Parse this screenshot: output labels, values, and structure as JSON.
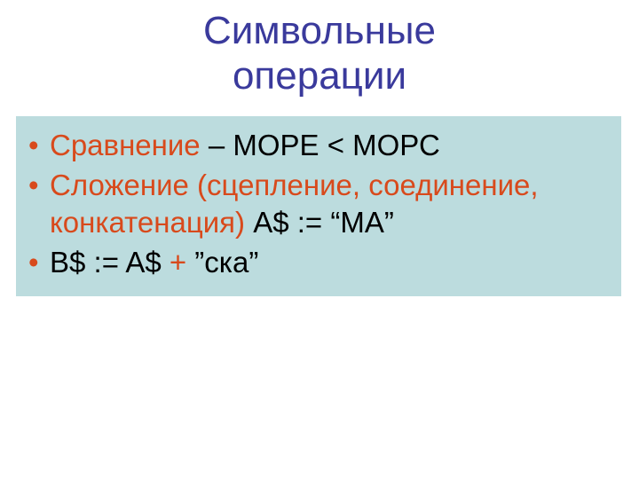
{
  "title": {
    "line1": "Символьные",
    "line2": "операции",
    "color": "#3a3a9c",
    "fontsize": 44
  },
  "content": {
    "background_color": "#bcdcde",
    "bullet_color": "#d84a1c",
    "text_color": "#000000",
    "accent_color": "#d84a1c",
    "fontsize": 33,
    "items": [
      {
        "parts": [
          {
            "text": "Сравнение",
            "color": "#d84a1c"
          },
          {
            "text": " – МОРЕ < МОРС",
            "color": "#000000"
          }
        ]
      },
      {
        "parts": [
          {
            "text": "Сложение (сцепление, соединение, конкатенация)",
            "color": "#d84a1c"
          },
          {
            "text": " A$ := “МА”",
            "color": "#000000"
          }
        ]
      },
      {
        "parts": [
          {
            "text": "B$ := A$ ",
            "color": "#000000"
          },
          {
            "text": "+",
            "color": "#d84a1c"
          },
          {
            "text": " ”ска”",
            "color": "#000000"
          }
        ]
      }
    ]
  }
}
